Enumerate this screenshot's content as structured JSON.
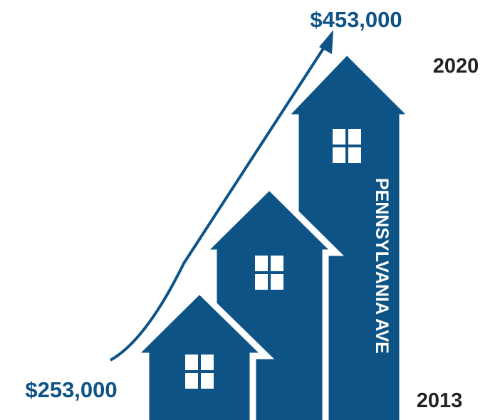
{
  "start_value": "$253,000",
  "end_value": "$453,000",
  "start_year": "2013",
  "end_year": "2020",
  "street": "PENNSYLVANIA AVE"
}
